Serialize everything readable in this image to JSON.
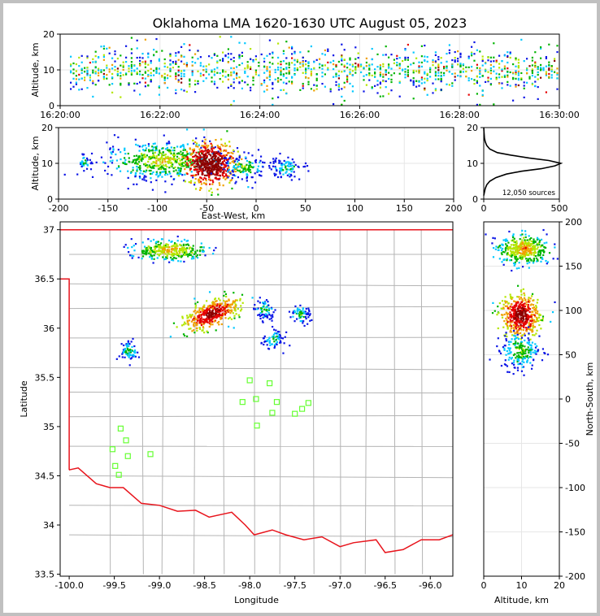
{
  "chart_data": [
    {
      "type": "heatmap",
      "panel": "time-altitude",
      "title": "Oklahoma LMA 1620-1630 UTC August 05, 2023",
      "ylabel": "Altitude, km",
      "xlabel": "",
      "xlim": [
        "16:20:00",
        "16:30:00"
      ],
      "ylim": [
        0,
        20
      ],
      "xticks": [
        "16:20:00",
        "16:22:00",
        "16:24:00",
        "16:26:00",
        "16:28:00",
        "16:30:00"
      ],
      "yticks": [
        0,
        10,
        20
      ],
      "grid": true
    },
    {
      "type": "heatmap",
      "panel": "eastwest-altitude",
      "xlabel": "East-West, km",
      "ylabel": "Altitude, km",
      "xlim": [
        -200,
        200
      ],
      "ylim": [
        0,
        20
      ],
      "xticks": [
        -200,
        -150,
        -100,
        -50,
        0,
        50,
        100,
        150,
        200
      ],
      "yticks": [
        0,
        10,
        20
      ],
      "grid": true
    },
    {
      "type": "line",
      "panel": "altitude-histogram",
      "annotation": "12,050 sources",
      "xlim": [
        0,
        500
      ],
      "ylim": [
        0,
        20
      ],
      "xticks": [
        0,
        500
      ],
      "yticks": [
        0,
        10,
        20
      ],
      "x": [
        0,
        5,
        10,
        20,
        40,
        80,
        150,
        250,
        380,
        470,
        510,
        430,
        300,
        180,
        90,
        40,
        20,
        10,
        5,
        2,
        0
      ],
      "y": [
        1,
        2,
        3,
        4,
        5,
        6,
        7,
        7.8,
        8.5,
        9.3,
        10,
        10.8,
        11.5,
        12.3,
        13,
        14,
        15,
        16,
        17,
        18.5,
        20
      ],
      "grid": true
    },
    {
      "type": "heatmap",
      "panel": "plan-view-map",
      "xlabel": "Longitude",
      "ylabel": "Latitude",
      "xlim": [
        -100.1,
        -95.75
      ],
      "ylim": [
        33.48,
        37.08
      ],
      "xticks": [
        -100.0,
        -99.5,
        -99.0,
        -98.5,
        -98.0,
        -97.5,
        -97.0,
        -96.5,
        -96.0
      ],
      "yticks": [
        33.5,
        34.0,
        34.5,
        35.0,
        35.5,
        36.0,
        36.5,
        37.0
      ],
      "stations": [
        [
          -99.43,
          34.98
        ],
        [
          -99.37,
          34.86
        ],
        [
          -99.52,
          34.77
        ],
        [
          -99.35,
          34.7
        ],
        [
          -99.49,
          34.6
        ],
        [
          -99.45,
          34.51
        ],
        [
          -99.1,
          34.72
        ],
        [
          -98.0,
          35.47
        ],
        [
          -97.78,
          35.44
        ],
        [
          -97.93,
          35.28
        ],
        [
          -98.08,
          35.25
        ],
        [
          -97.7,
          35.25
        ],
        [
          -97.35,
          35.24
        ],
        [
          -97.42,
          35.18
        ],
        [
          -97.75,
          35.14
        ],
        [
          -97.5,
          35.13
        ],
        [
          -97.92,
          35.01
        ]
      ],
      "clusters": [
        {
          "lon": -98.43,
          "lat": 36.15,
          "intensity": "high"
        },
        {
          "lon": -98.9,
          "lat": 36.8,
          "intensity": "medium"
        },
        {
          "lon": -99.35,
          "lat": 35.78,
          "intensity": "low"
        },
        {
          "lon": -97.85,
          "lat": 36.2,
          "intensity": "low"
        },
        {
          "lon": -97.75,
          "lat": 35.9,
          "intensity": "low"
        },
        {
          "lon": -97.45,
          "lat": 36.15,
          "intensity": "low"
        }
      ],
      "boundary_color": "#e8141c",
      "county_color": "#b4b4b4",
      "station_color": "#66ff33"
    },
    {
      "type": "heatmap",
      "panel": "altitude-northsouth",
      "xlabel": "Altitude, km",
      "ylabel": "North-South, km",
      "xlim": [
        0,
        20
      ],
      "ylim": [
        -200,
        200
      ],
      "xticks": [
        0,
        10,
        20
      ],
      "yticks": [
        -200,
        -150,
        -100,
        -50,
        0,
        50,
        100,
        150,
        200
      ],
      "grid": true
    }
  ],
  "colors": {
    "density": [
      "#0a14e6",
      "#00c8ff",
      "#00b400",
      "#b4e600",
      "#f0a000",
      "#e60000",
      "#8c0000"
    ],
    "histogram": "#000000"
  }
}
